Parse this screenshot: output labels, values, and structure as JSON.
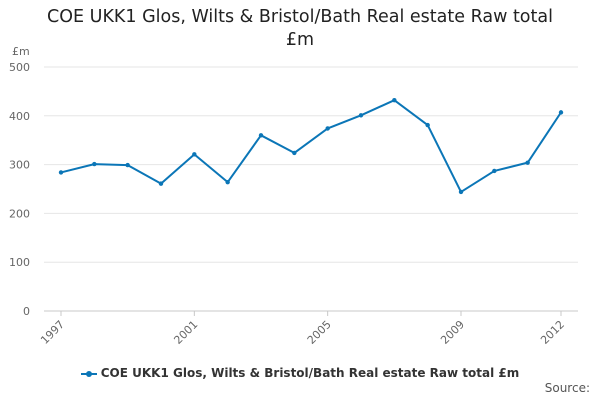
{
  "chart_data": {
    "type": "line",
    "title_lines": [
      "COE UKK1 Glos, Wilts & Bristol/Bath Real estate Raw total",
      "£m"
    ],
    "ylabel": "£m",
    "ylim": [
      0,
      500
    ],
    "yticks": [
      0,
      100,
      200,
      300,
      400,
      500
    ],
    "xlim": [
      1997,
      2012
    ],
    "xticks": [
      "1997",
      "2001",
      "2005",
      "2009",
      "2012"
    ],
    "grid": true,
    "legend_position": "bottom",
    "series": [
      {
        "name": "COE UKK1 Glos, Wilts & Bristol/Bath Real estate Raw total £m",
        "color": "#0b76b7",
        "x": [
          1997,
          1998,
          1999,
          2000,
          2001,
          2002,
          2003,
          2004,
          2005,
          2006,
          2007,
          2008,
          2009,
          2010,
          2011,
          2012
        ],
        "values": [
          284,
          301,
          299,
          261,
          321,
          264,
          360,
          324,
          374,
          401,
          432,
          381,
          244,
          287,
          304,
          407
        ]
      }
    ]
  },
  "source_label": "Source:"
}
